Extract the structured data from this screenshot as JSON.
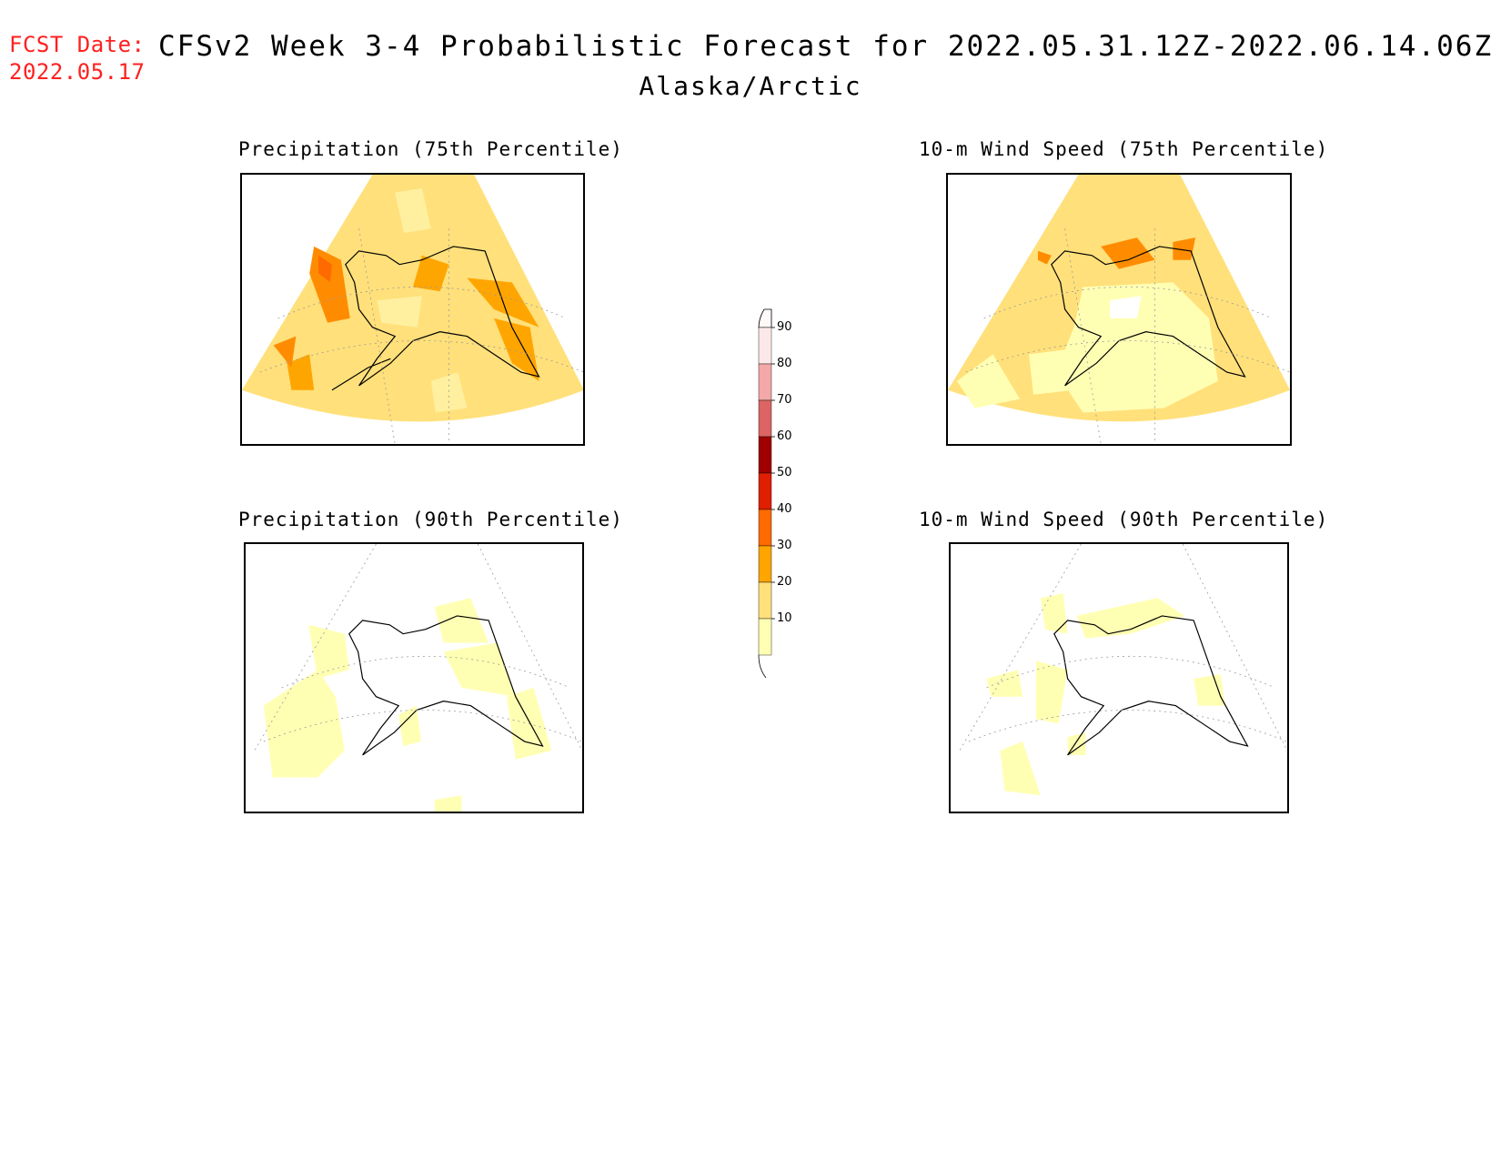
{
  "header": {
    "fcst_label": "FCST Date:",
    "fcst_date": "2022.05.17",
    "title": "CFSv2 Week 3-4 Probabilistic Forecast for 2022.05.31.12Z-2022.06.14.06Z",
    "region": "Alaska/Arctic"
  },
  "panels": [
    {
      "title": "Precipitation (75th Percentile)"
    },
    {
      "title": "10-m Wind Speed (75th Percentile)"
    },
    {
      "title": "Precipitation (90th Percentile)"
    },
    {
      "title": "10-m Wind Speed (90th Percentile)"
    }
  ],
  "colorbar": {
    "labels": [
      "90",
      "80",
      "70",
      "60",
      "50",
      "40",
      "30",
      "20",
      "10"
    ],
    "colors": [
      "#fce8e8",
      "#f4a8a8",
      "#dc6464",
      "#a00000",
      "#e01e00",
      "#ff6a00",
      "#ffa500",
      "#ffe07a",
      "#ffffb4"
    ]
  }
}
